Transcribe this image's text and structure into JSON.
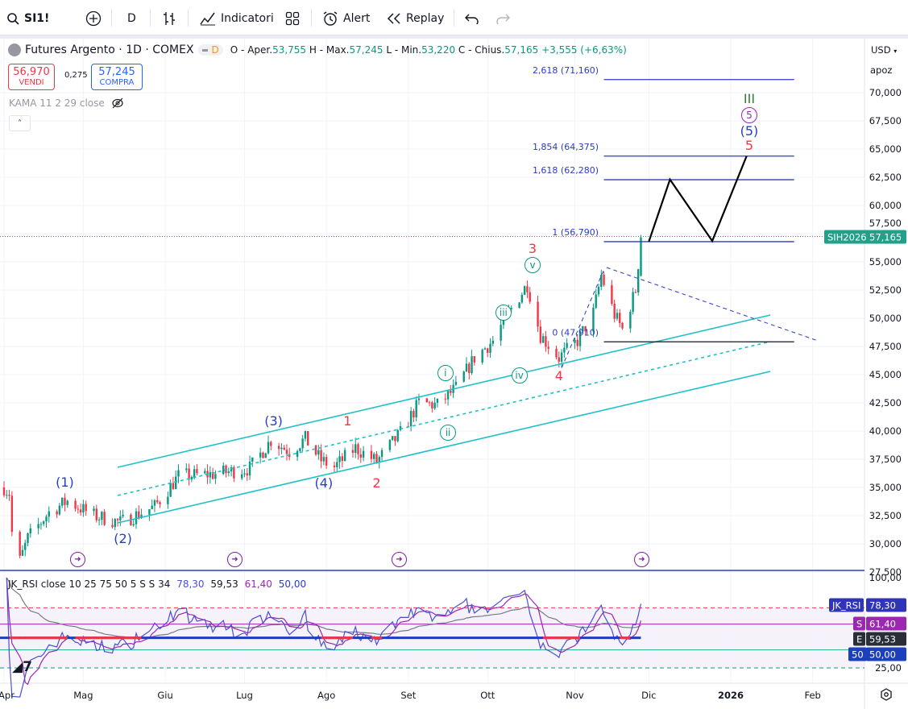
{
  "toolbar": {
    "symbol": "SI1!",
    "interval": "D",
    "indicators_label": "Indicatori",
    "alert_label": "Alert",
    "replay_label": "Replay"
  },
  "legend": {
    "title": "Futures Argento · 1D · COMEX",
    "badge": "D",
    "o_label": "O - Aper.",
    "o": "53,755",
    "h_label": "H - Max.",
    "h": "57,245",
    "l_label": "L - Min.",
    "l": "53,220",
    "c_label": "C - Chius.",
    "c": "57,165",
    "change": "+3,555 (+6,63%)",
    "sell_price": "56,970",
    "sell_label": "VENDI",
    "spread": "0,275",
    "buy_price": "57,245",
    "buy_label": "COMPRA",
    "kama": "KAMA 11 2 29 close",
    "rsi_title": "JK_RSI close 10 25 75 50 5 S S 34",
    "rsi_v1": "78,30",
    "rsi_v2": "59,53",
    "rsi_v3": "61,40",
    "rsi_v4": "50,00"
  },
  "right_header": {
    "currency": "USD",
    "mode": "apoz"
  },
  "colors": {
    "up": "#089981",
    "down": "#f23645",
    "fib": "#2a3cc1",
    "channel": "#1fc1c8",
    "rsi": "#4a4fd6",
    "signal": "#9c27b0",
    "ema": "#787b86"
  },
  "price_axis": [
    "70,000",
    "67,500",
    "65,000",
    "62,500",
    "60,000",
    "57,500",
    "55,000",
    "52,500",
    "50,000",
    "47,500",
    "45,000",
    "42,500",
    "40,000",
    "37,500",
    "35,000",
    "32,500",
    "30,000",
    "27,500"
  ],
  "rsi_axis": [
    "100,00",
    "25,00"
  ],
  "time_axis": [
    {
      "label": "Apr",
      "date": "2025-04-01"
    },
    {
      "label": "Mag",
      "date": "2025-05-01"
    },
    {
      "label": "Giu",
      "date": "2025-06-01"
    },
    {
      "label": "Lug",
      "date": "2025-07-01"
    },
    {
      "label": "Ago",
      "date": "2025-08-01"
    },
    {
      "label": "Set",
      "date": "2025-09-01"
    },
    {
      "label": "Ott",
      "date": "2025-10-01"
    },
    {
      "label": "Nov",
      "date": "2025-11-03"
    },
    {
      "label": "Dic",
      "date": "2025-12-01"
    },
    {
      "label": "2026",
      "date": "2026-01-01"
    },
    {
      "label": "Feb",
      "date": "2026-02-01"
    }
  ],
  "tags": {
    "symbol_tag": "SIH2026",
    "last_price": "57,165",
    "rsi_name": "JK_RSI",
    "rsi_value": "78,30",
    "s_name": "S",
    "s_value": "61,40",
    "e_name": "E",
    "e_value": "59,53",
    "level_name": "50",
    "level_value": "50,00"
  },
  "chart_data": {
    "type": "candlestick",
    "symbol": "SI1!",
    "last": 57165,
    "ylim": [
      27000,
      72000
    ],
    "price_path": [
      [
        "2025-04-01",
        35000
      ],
      [
        "2025-04-03",
        34500
      ],
      [
        "2025-04-04",
        31000
      ],
      [
        "2025-04-07",
        28500
      ],
      [
        "2025-04-10",
        30500
      ],
      [
        "2025-04-18",
        32800
      ],
      [
        "2025-04-25",
        33800
      ],
      [
        "2025-05-05",
        32500
      ],
      [
        "2025-05-15",
        31900
      ],
      [
        "2025-05-28",
        33300
      ],
      [
        "2025-06-06",
        36000
      ],
      [
        "2025-06-20",
        36200
      ],
      [
        "2025-07-03",
        36700
      ],
      [
        "2025-07-11",
        39200
      ],
      [
        "2025-07-18",
        38200
      ],
      [
        "2025-07-24",
        39300
      ],
      [
        "2025-07-30",
        37400
      ],
      [
        "2025-08-04",
        36800
      ],
      [
        "2025-08-12",
        38500
      ],
      [
        "2025-08-20",
        37300
      ],
      [
        "2025-08-29",
        39800
      ],
      [
        "2025-09-05",
        42500
      ],
      [
        "2025-09-12",
        42300
      ],
      [
        "2025-09-19",
        43800
      ],
      [
        "2025-09-26",
        46500
      ],
      [
        "2025-10-03",
        48000
      ],
      [
        "2025-10-09",
        50500
      ],
      [
        "2025-10-16",
        53000
      ],
      [
        "2025-10-21",
        48500
      ],
      [
        "2025-10-28",
        46500
      ],
      [
        "2025-11-04",
        48000
      ],
      [
        "2025-11-10",
        50500
      ],
      [
        "2025-11-13",
        53800
      ],
      [
        "2025-11-18",
        50300
      ],
      [
        "2025-11-21",
        49000
      ],
      [
        "2025-11-26",
        52500
      ],
      [
        "2025-11-28",
        57165
      ]
    ],
    "fib_levels": [
      {
        "label": "2,618 (71,160)",
        "price": 71160
      },
      {
        "label": "1,854 (64,375)",
        "price": 64375
      },
      {
        "label": "1,618 (62,280)",
        "price": 62280
      },
      {
        "label": "1 (56,790)",
        "price": 56790
      },
      {
        "label": "0 (47,910)",
        "price": 47910
      }
    ],
    "fib_range": [
      "2025-11-14",
      "2026-01-25"
    ],
    "channel": {
      "start": "2025-05-14",
      "end": "2026-01-16",
      "upper": [
        36786,
        50286
      ],
      "middle": [
        34286,
        47929
      ],
      "lower": [
        31857,
        45286
      ]
    },
    "projection": [
      [
        "2025-12-01",
        56790
      ],
      [
        "2025-12-09",
        62300
      ],
      [
        "2025-12-25",
        56850
      ],
      [
        "2026-01-07",
        64375
      ]
    ],
    "triangle": [
      [
        [
          "2025-10-29",
          45600
        ],
        [
          "2025-11-14",
          54300
        ]
      ],
      [
        [
          "2025-11-15",
          54500
        ],
        [
          "2026-02-03",
          48000
        ]
      ]
    ],
    "wave_labels": [
      {
        "text": "(1)",
        "date": "2025-04-24",
        "price": 35429,
        "style": "blue"
      },
      {
        "text": "(2)",
        "date": "2025-05-16",
        "price": 30429,
        "style": "blue"
      },
      {
        "text": "(3)",
        "date": "2025-07-12",
        "price": 40857,
        "style": "blue"
      },
      {
        "text": "(4)",
        "date": "2025-07-31",
        "price": 35357,
        "style": "blue"
      },
      {
        "text": "1",
        "date": "2025-08-09",
        "price": 40857,
        "style": "red"
      },
      {
        "text": "2",
        "date": "2025-08-20",
        "price": 35357,
        "style": "red"
      },
      {
        "text": "3",
        "date": "2025-10-18",
        "price": 55929,
        "style": "red"
      },
      {
        "text": "4",
        "date": "2025-10-28",
        "price": 44857,
        "style": "red"
      },
      {
        "text": "5",
        "date": "2026-01-08",
        "price": 65286,
        "style": "red"
      },
      {
        "text": "i",
        "date": "2025-09-15",
        "price": 45143,
        "style": "teal"
      },
      {
        "text": "ii",
        "date": "2025-09-16",
        "price": 39857,
        "style": "teal"
      },
      {
        "text": "iii",
        "date": "2025-10-07",
        "price": 50500,
        "style": "teal"
      },
      {
        "text": "iv",
        "date": "2025-10-13",
        "price": 44929,
        "style": "teal"
      },
      {
        "text": "v",
        "date": "2025-10-18",
        "price": 54714,
        "style": "teal"
      },
      {
        "text": "(5)",
        "date": "2026-01-08",
        "price": 66429,
        "style": "blue"
      },
      {
        "text": "5",
        "date": "2026-01-08",
        "price": 67643,
        "style": "purple"
      },
      {
        "text": "III",
        "date": "2026-01-08",
        "price": 68929,
        "style": "green"
      }
    ],
    "rsi": {
      "period": 10,
      "upper": 75,
      "lower": 25,
      "mid": 50,
      "signal_len": 5,
      "ema_len": 34,
      "ylim": [
        20,
        100
      ],
      "last": 78.3,
      "signal_last": 61.4,
      "ema_last": 59.53
    }
  }
}
